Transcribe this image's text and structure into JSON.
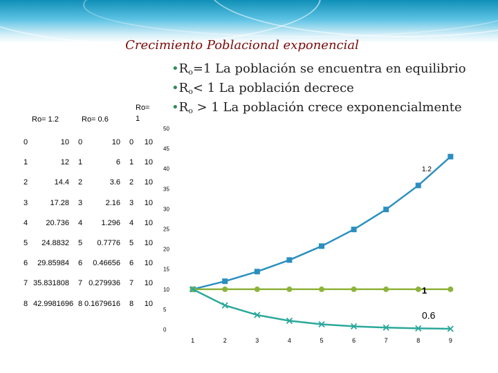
{
  "slide": {
    "title": "Crecimiento Poblacional exponencial",
    "bullets": [
      {
        "lead": "R",
        "sub": "o",
        "rest": "=1  La población se encuentra en equilibrio"
      },
      {
        "lead": "R",
        "sub": "o",
        "rest": "< 1  La población decrece"
      },
      {
        "lead": "R",
        "sub": "o",
        "rest": " > 1 La población crece exponencialmente"
      }
    ]
  },
  "table": {
    "headers": [
      "Ro= 1.2",
      "Ro= 0.6",
      "Ro=",
      "1"
    ],
    "rows": [
      [
        "0",
        "10",
        "0",
        "10",
        "0",
        "10"
      ],
      [
        "1",
        "12",
        "1",
        "6",
        "1",
        "10"
      ],
      [
        "2",
        "14.4",
        "2",
        "3.6",
        "2",
        "10"
      ],
      [
        "3",
        "17.28",
        "3",
        "2.16",
        "3",
        "10"
      ],
      [
        "4",
        "20.736",
        "4",
        "1.296",
        "4",
        "10"
      ],
      [
        "5",
        "24.8832",
        "5",
        "0.7776",
        "5",
        "10"
      ],
      [
        "6",
        "29.85984",
        "6",
        "0.46656",
        "6",
        "10"
      ],
      [
        "7",
        "35.831808",
        "7",
        "0.279936",
        "7",
        "10"
      ],
      [
        "8",
        "42.9981696",
        "8",
        "0.1679616",
        "8",
        "10"
      ]
    ]
  },
  "chart_data": {
    "type": "line",
    "x": [
      1,
      2,
      3,
      4,
      5,
      6,
      7,
      8,
      9
    ],
    "xticks": [
      "1",
      "2",
      "3",
      "4",
      "5",
      "6",
      "7",
      "8",
      "9"
    ],
    "yticks": [
      "0",
      "5",
      "10",
      "15",
      "20",
      "25",
      "30",
      "35",
      "40",
      "45",
      "50"
    ],
    "ylim": [
      0,
      50
    ],
    "series": [
      {
        "label": "1.2",
        "color": "#2a8fbf",
        "marker": "square",
        "values": [
          10,
          12,
          14.4,
          17.28,
          20.736,
          24.8832,
          29.85984,
          35.831808,
          42.9981696
        ]
      },
      {
        "label": "1",
        "color": "#8db33a",
        "marker": "circle",
        "values": [
          10,
          10,
          10,
          10,
          10,
          10,
          10,
          10,
          10
        ]
      },
      {
        "label": "0.6",
        "color": "#2aa89a",
        "marker": "x",
        "values": [
          10,
          6,
          3.6,
          2.16,
          1.296,
          0.7776,
          0.46656,
          0.279936,
          0.1679616
        ]
      }
    ]
  }
}
